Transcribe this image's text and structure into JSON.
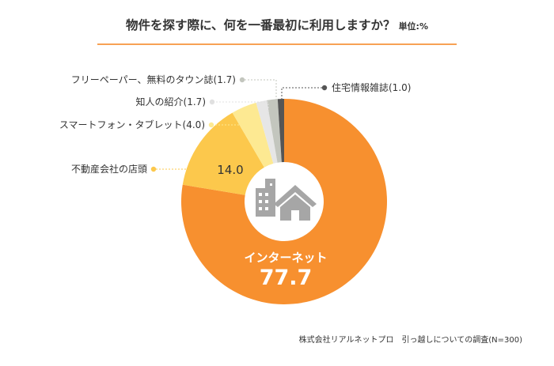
{
  "title": "物件を探す際に、何を一番最初に利用しますか？",
  "unit_label": "単位:%",
  "source": "株式会社リアルネットプロ　引っ越しについての調査(N=300)",
  "chart_data": {
    "type": "pie",
    "title": "物件を探す際に、何を一番最初に利用しますか？",
    "unit": "%",
    "slices": [
      {
        "label": "インターネット",
        "value": 77.7,
        "value_text": "77.7",
        "color": "#f7902f"
      },
      {
        "label": "不動産会社の店頭",
        "value": 14.0,
        "value_text": "14.0",
        "color": "#fcc84c"
      },
      {
        "label": "スマートフォン・タブレット",
        "value": 4.0,
        "value_text": "(4.0)",
        "color": "#fde992"
      },
      {
        "label": "知人の紹介",
        "value": 1.7,
        "value_text": "(1.7)",
        "color": "#e6e6e6"
      },
      {
        "label": "フリーペーパー、無料のタウン誌",
        "value": 1.7,
        "value_text": "(1.7)",
        "color": "#c3c6be"
      },
      {
        "label": "住宅情報雑誌",
        "value": 1.0,
        "value_text": "(1.0)",
        "color": "#555555"
      }
    ],
    "legend": "none"
  }
}
